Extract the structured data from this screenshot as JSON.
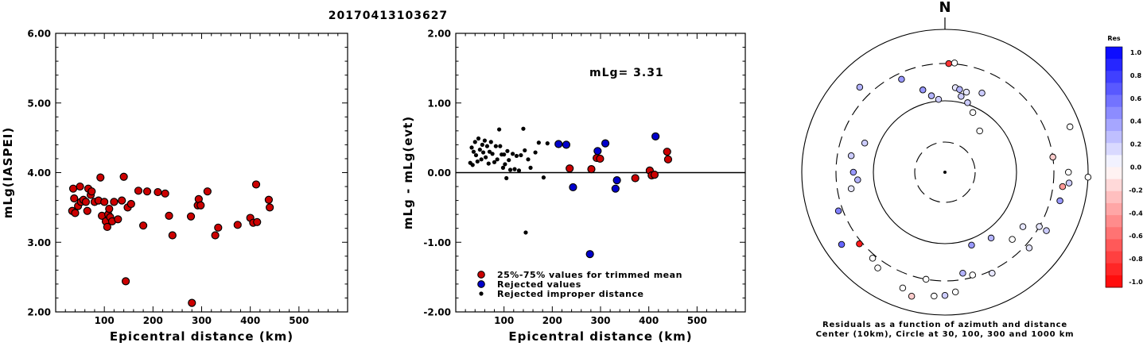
{
  "figure_title": "20170413103627",
  "chart_data": [
    {
      "type": "scatter",
      "xlabel": "Epicentral distance (km)",
      "ylabel": "mLg(IASPEI)",
      "xlim": [
        0,
        600
      ],
      "ylim": [
        2.0,
        6.0
      ],
      "x_ticks": [
        100,
        200,
        300,
        400,
        500
      ],
      "x_tick_labels": [
        "100",
        "200",
        "300",
        "400",
        "500"
      ],
      "y_ticks": [
        2,
        3,
        4,
        5,
        6
      ],
      "y_tick_labels": [
        "2.00",
        "3.00",
        "4.00",
        "5.00",
        "6.00"
      ],
      "color": "#cc0000",
      "points": [
        [
          34,
          3.45
        ],
        [
          36,
          3.77
        ],
        [
          38,
          3.63
        ],
        [
          40,
          3.42
        ],
        [
          46,
          3.52
        ],
        [
          50,
          3.8
        ],
        [
          52,
          3.58
        ],
        [
          57,
          3.61
        ],
        [
          62,
          3.58
        ],
        [
          65,
          3.45
        ],
        [
          67,
          3.77
        ],
        [
          72,
          3.68
        ],
        [
          74,
          3.73
        ],
        [
          80,
          3.58
        ],
        [
          88,
          3.6
        ],
        [
          92,
          3.93
        ],
        [
          95,
          3.38
        ],
        [
          100,
          3.58
        ],
        [
          103,
          3.3
        ],
        [
          106,
          3.22
        ],
        [
          108,
          3.4
        ],
        [
          110,
          3.48
        ],
        [
          112,
          3.36
        ],
        [
          116,
          3.3
        ],
        [
          120,
          3.58
        ],
        [
          128,
          3.33
        ],
        [
          136,
          3.6
        ],
        [
          140,
          3.94
        ],
        [
          144,
          2.44
        ],
        [
          148,
          3.5
        ],
        [
          155,
          3.55
        ],
        [
          170,
          3.74
        ],
        [
          180,
          3.24
        ],
        [
          188,
          3.73
        ],
        [
          210,
          3.72
        ],
        [
          225,
          3.7
        ],
        [
          233,
          3.38
        ],
        [
          240,
          3.1
        ],
        [
          278,
          3.37
        ],
        [
          280,
          2.13
        ],
        [
          292,
          3.53
        ],
        [
          294,
          3.62
        ],
        [
          298,
          3.53
        ],
        [
          312,
          3.73
        ],
        [
          328,
          3.1
        ],
        [
          334,
          3.21
        ],
        [
          374,
          3.25
        ],
        [
          400,
          3.35
        ],
        [
          406,
          3.28
        ],
        [
          412,
          3.83
        ],
        [
          414,
          3.29
        ],
        [
          438,
          3.61
        ],
        [
          440,
          3.5
        ]
      ]
    },
    {
      "type": "scatter",
      "xlabel": "Epicentral distance (km)",
      "ylabel": "mLg - mLg(evt)",
      "xlim": [
        0,
        600
      ],
      "ylim": [
        -2.0,
        2.0
      ],
      "x_ticks": [
        100,
        200,
        300,
        400,
        500
      ],
      "x_tick_labels": [
        "100",
        "200",
        "300",
        "400",
        "500"
      ],
      "y_ticks": [
        -2,
        -1,
        0,
        1,
        2
      ],
      "y_tick_labels": [
        "-2.00",
        "-1.00",
        "0.00",
        "1.00",
        "2.00"
      ],
      "zero_line": true,
      "annotation": "mLg= 3.31",
      "legend": [
        "25%-75% values for trimmed mean",
        "Rejected values",
        "Rejected improper distance"
      ],
      "series": [
        {
          "name": "25%-75% values for trimmed mean",
          "color": "#cc0000",
          "points": [
            [
              236,
              0.06
            ],
            [
              281,
              0.05
            ],
            [
              292,
              0.21
            ],
            [
              299,
              0.2
            ],
            [
              372,
              -0.08
            ],
            [
              402,
              0.03
            ],
            [
              406,
              -0.04
            ],
            [
              412,
              -0.03
            ],
            [
              438,
              0.3
            ],
            [
              440,
              0.19
            ]
          ]
        },
        {
          "name": "Rejected values",
          "color": "#0000cc",
          "points": [
            [
              213,
              0.41
            ],
            [
              229,
              0.4
            ],
            [
              243,
              -0.21
            ],
            [
              278,
              -1.17
            ],
            [
              294,
              0.31
            ],
            [
              310,
              0.42
            ],
            [
              331,
              -0.23
            ],
            [
              334,
              -0.11
            ],
            [
              414,
              0.52
            ]
          ]
        },
        {
          "name": "Rejected improper distance",
          "color": "#000000",
          "points": [
            [
              30,
              0.14
            ],
            [
              33,
              0.36
            ],
            [
              35,
              0.11
            ],
            [
              37,
              0.3
            ],
            [
              40,
              0.44
            ],
            [
              42,
              0.25
            ],
            [
              45,
              0.16
            ],
            [
              47,
              0.49
            ],
            [
              50,
              0.33
            ],
            [
              53,
              0.19
            ],
            [
              55,
              0.4
            ],
            [
              57,
              0.29
            ],
            [
              60,
              0.46
            ],
            [
              62,
              0.22
            ],
            [
              65,
              0.38
            ],
            [
              68,
              0.13
            ],
            [
              70,
              0.3
            ],
            [
              73,
              0.44
            ],
            [
              76,
              0.27
            ],
            [
              80,
              0.15
            ],
            [
              83,
              0.38
            ],
            [
              86,
              0.19
            ],
            [
              90,
              0.62
            ],
            [
              92,
              0.38
            ],
            [
              95,
              0.26
            ],
            [
              98,
              0.07
            ],
            [
              100,
              0.26
            ],
            [
              102,
              0.12
            ],
            [
              105,
              -0.08
            ],
            [
              107,
              0.31
            ],
            [
              110,
              0.18
            ],
            [
              113,
              0.04
            ],
            [
              118,
              0.27
            ],
            [
              122,
              0.05
            ],
            [
              126,
              0.24
            ],
            [
              131,
              0.03
            ],
            [
              135,
              0.25
            ],
            [
              140,
              0.63
            ],
            [
              143,
              0.32
            ],
            [
              145,
              -0.86
            ],
            [
              150,
              0.19
            ],
            [
              155,
              0.07
            ],
            [
              165,
              0.29
            ],
            [
              172,
              0.43
            ],
            [
              182,
              -0.07
            ],
            [
              190,
              0.42
            ]
          ]
        }
      ]
    },
    {
      "type": "scatter",
      "subtype": "polar_residuals",
      "north_label": "N",
      "caption": [
        "Residuals as a function of azimuth and distance",
        "Center (10km), Circle at 30, 100, 300 and 1000 km"
      ],
      "rings_km": [
        30,
        100,
        300,
        1000
      ],
      "colorbar": {
        "title": "Res",
        "range": [
          -1.0,
          1.0
        ],
        "tick_labels": [
          "1.0",
          "0.8",
          "0.6",
          "0.4",
          "0.2",
          "0.0",
          "-0.2",
          "-0.4",
          "-0.6",
          "-0.8",
          "-1.0"
        ]
      },
      "points": [
        {
          "az": 2,
          "dist": 300,
          "res": -0.8
        },
        {
          "az": 5,
          "dist": 310,
          "res": 0.0
        },
        {
          "az": 7,
          "dist": 150,
          "res": 0.1
        },
        {
          "az": 10,
          "dist": 145,
          "res": 0.3
        },
        {
          "az": 12,
          "dist": 120,
          "res": 0.2
        },
        {
          "az": 15,
          "dist": 140,
          "res": 0.1
        },
        {
          "az": 18,
          "dist": 105,
          "res": 0.2
        },
        {
          "az": 25,
          "dist": 160,
          "res": 0.2
        },
        {
          "az": 25,
          "dist": 85,
          "res": 0.0
        },
        {
          "az": 40,
          "dist": 60,
          "res": 0.0
        },
        {
          "az": 70,
          "dist": 700,
          "res": 0.0
        },
        {
          "az": 82,
          "dist": 300,
          "res": -0.2
        },
        {
          "az": 90,
          "dist": 500,
          "res": 0.0
        },
        {
          "az": 92,
          "dist": 1000,
          "res": 0.0
        },
        {
          "az": 95,
          "dist": 520,
          "res": 0.2
        },
        {
          "az": 97,
          "dist": 420,
          "res": -0.4
        },
        {
          "az": 104,
          "dist": 420,
          "res": 0.4
        },
        {
          "az": 120,
          "dist": 400,
          "res": 0.2
        },
        {
          "az": 120,
          "dist": 300,
          "res": 0.1
        },
        {
          "az": 125,
          "dist": 200,
          "res": 0.1
        },
        {
          "az": 132,
          "dist": 350,
          "res": 0.1
        },
        {
          "az": 135,
          "dist": 200,
          "res": 0.0
        },
        {
          "az": 145,
          "dist": 130,
          "res": 0.3
        },
        {
          "az": 155,
          "dist": 330,
          "res": 0.1
        },
        {
          "az": 160,
          "dist": 120,
          "res": 0.4
        },
        {
          "az": 165,
          "dist": 280,
          "res": 0.0
        },
        {
          "az": 170,
          "dist": 250,
          "res": 0.3
        },
        {
          "az": 175,
          "dist": 450,
          "res": 0.0
        },
        {
          "az": 180,
          "dist": 500,
          "res": 0.2
        },
        {
          "az": 185,
          "dist": 520,
          "res": 0.0
        },
        {
          "az": 190,
          "dist": 300,
          "res": 0.0
        },
        {
          "az": 195,
          "dist": 600,
          "res": -0.2
        },
        {
          "az": 200,
          "dist": 500,
          "res": 0.0
        },
        {
          "az": 215,
          "dist": 400,
          "res": 0.0
        },
        {
          "az": 220,
          "dist": 340,
          "res": 0.0
        },
        {
          "az": 230,
          "dist": 330,
          "res": -0.9
        },
        {
          "az": 235,
          "dist": 550,
          "res": 0.6
        },
        {
          "az": 250,
          "dist": 350,
          "res": 0.5
        },
        {
          "az": 260,
          "dist": 200,
          "res": 0.1
        },
        {
          "az": 265,
          "dist": 160,
          "res": 0.3
        },
        {
          "az": 270,
          "dist": 180,
          "res": 0.4
        },
        {
          "az": 280,
          "dist": 200,
          "res": 0.2
        },
        {
          "az": 290,
          "dist": 150,
          "res": 0.2
        },
        {
          "az": 315,
          "dist": 450,
          "res": 0.3
        },
        {
          "az": 335,
          "dist": 250,
          "res": 0.4
        },
        {
          "az": 345,
          "dist": 150,
          "res": 0.4
        },
        {
          "az": 350,
          "dist": 120,
          "res": 0.3
        },
        {
          "az": 355,
          "dist": 105,
          "res": 0.2
        }
      ]
    }
  ]
}
